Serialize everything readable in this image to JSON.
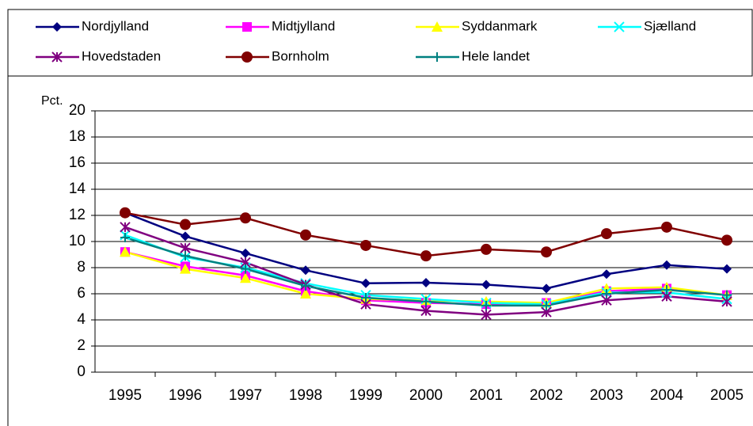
{
  "chart_data": {
    "type": "line",
    "ylabel": "Pct.",
    "categories": [
      "1995",
      "1996",
      "1997",
      "1998",
      "1999",
      "2000",
      "2001",
      "2002",
      "2003",
      "2004",
      "2005"
    ],
    "series": [
      {
        "name": "Nordjylland",
        "color": "#000080",
        "marker": "diamond",
        "values": [
          12.2,
          10.4,
          9.1,
          7.8,
          6.8,
          6.85,
          6.7,
          6.4,
          7.5,
          8.2,
          7.9
        ]
      },
      {
        "name": "Midtjylland",
        "color": "#ff00ff",
        "marker": "square",
        "values": [
          9.2,
          8.1,
          7.4,
          6.2,
          5.5,
          5.3,
          5.2,
          5.3,
          6.2,
          6.4,
          5.9
        ]
      },
      {
        "name": "Syddanmark",
        "color": "#ffff00",
        "marker": "triangle",
        "values": [
          9.2,
          7.9,
          7.2,
          6.0,
          5.6,
          5.5,
          5.4,
          5.3,
          6.4,
          6.5,
          5.9
        ]
      },
      {
        "name": "Sjælland",
        "color": "#00ffff",
        "marker": "x",
        "values": [
          10.5,
          8.8,
          8.0,
          6.8,
          5.9,
          5.6,
          5.3,
          5.2,
          6.1,
          6.1,
          5.6
        ]
      },
      {
        "name": "Hovedstaden",
        "color": "#800080",
        "marker": "star",
        "values": [
          11.1,
          9.5,
          8.4,
          6.7,
          5.2,
          4.7,
          4.4,
          4.6,
          5.5,
          5.8,
          5.4
        ]
      },
      {
        "name": "Bornholm",
        "color": "#800000",
        "marker": "circle",
        "values": [
          12.2,
          11.3,
          11.8,
          10.5,
          9.7,
          8.9,
          9.4,
          9.2,
          10.6,
          11.1,
          10.1
        ]
      },
      {
        "name": "Hele landet",
        "color": "#008080",
        "marker": "plus",
        "values": [
          10.3,
          8.9,
          7.9,
          6.6,
          5.7,
          5.4,
          5.1,
          5.1,
          6.0,
          6.3,
          5.9
        ]
      }
    ],
    "ylim": [
      0,
      20
    ],
    "yticks": [
      0,
      2,
      4,
      6,
      8,
      10,
      12,
      14,
      16,
      18,
      20
    ],
    "grid": true
  }
}
